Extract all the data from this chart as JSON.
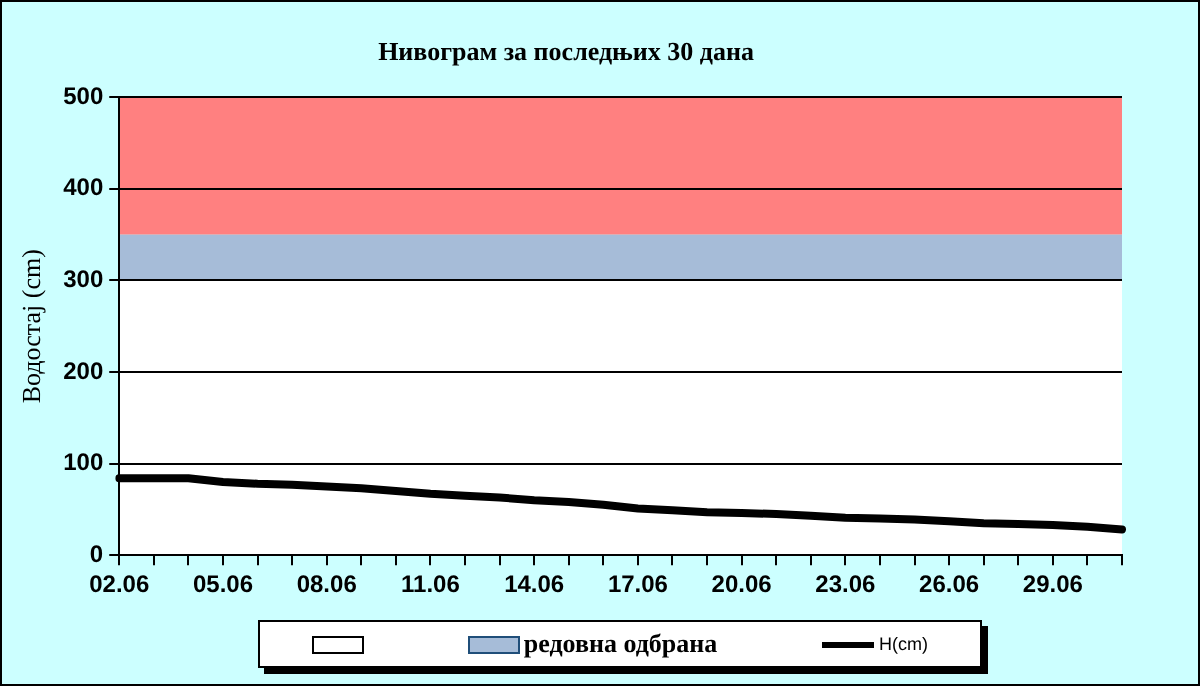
{
  "chart_data": {
    "type": "line",
    "title": "Нивограм за последњих 30 дана",
    "ylabel": "Водостај (cm)",
    "categories": [
      "02.06",
      null,
      null,
      "05.06",
      null,
      null,
      "08.06",
      null,
      null,
      "11.06",
      null,
      null,
      "14.06",
      null,
      null,
      "17.06",
      null,
      null,
      "20.06",
      null,
      null,
      "23.06",
      null,
      null,
      "26.06",
      null,
      null,
      "29.06",
      null,
      null
    ],
    "series": [
      {
        "name": "H(cm)",
        "color": "#000000",
        "values": [
          84,
          84,
          84,
          80,
          78,
          77,
          75,
          73,
          70,
          67,
          65,
          63,
          60,
          58,
          55,
          51,
          49,
          47,
          46,
          45,
          43,
          41,
          40,
          39,
          37,
          35,
          34,
          33,
          31,
          28
        ]
      }
    ],
    "ylim": [
      0,
      500
    ],
    "yticks": [
      0,
      100,
      200,
      300,
      400,
      500
    ],
    "grid": "y",
    "legend": "bottom",
    "marker": "none",
    "line_style": "solid",
    "bands": [
      {
        "axis": "y",
        "from": 0,
        "to": 300,
        "color": "#ffffff"
      },
      {
        "axis": "y",
        "from": 300,
        "to": 350,
        "label": "редовна одбрана",
        "color": "#a6bcd8"
      },
      {
        "axis": "y",
        "from": 350,
        "to": 500,
        "color": "#ff8080"
      }
    ]
  }
}
